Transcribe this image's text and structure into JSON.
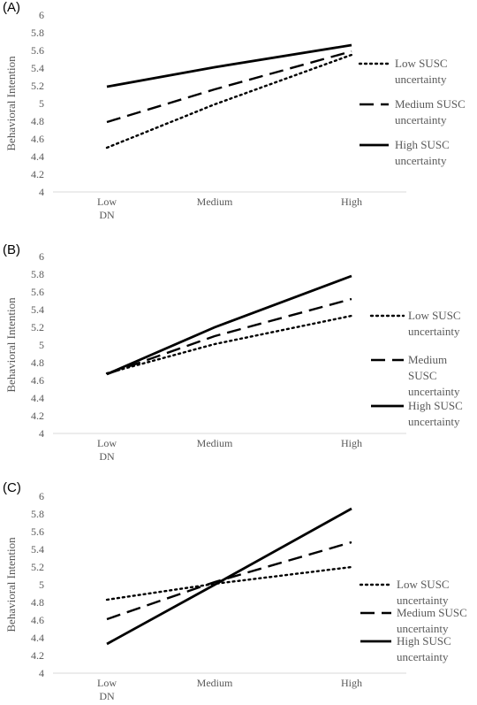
{
  "chart_data": [
    {
      "type": "line",
      "panel_label": "(A)",
      "ylabel": "Behavioral Intention",
      "ylim": [
        4,
        6
      ],
      "yticks": [
        "4",
        "4.2",
        "4.4",
        "4.6",
        "4.8",
        "5",
        "5.2",
        "5.4",
        "5.6",
        "5.8",
        "6"
      ],
      "categories": [
        "Low\nDN",
        "Medium",
        "High"
      ],
      "legend_position": "right",
      "series": [
        {
          "name": "Low SUSC\nuncertainty",
          "style": "dotted",
          "values": [
            4.5,
            4.99,
            5.55
          ]
        },
        {
          "name": "Medium SUSC\nuncertainty",
          "style": "dashed",
          "values": [
            4.79,
            5.16,
            5.59
          ]
        },
        {
          "name": "High SUSC\nuncertainty",
          "style": "solid",
          "values": [
            5.19,
            5.41,
            5.66
          ]
        }
      ]
    },
    {
      "type": "line",
      "panel_label": "(B)",
      "ylabel": "Behavioral Intention",
      "ylim": [
        4,
        6
      ],
      "yticks": [
        "4",
        "4.2",
        "4.4",
        "4.6",
        "4.8",
        "5",
        "5.2",
        "5.4",
        "5.6",
        "5.8",
        "6"
      ],
      "categories": [
        "Low\nDN",
        "Medium",
        "High"
      ],
      "legend_position": "right",
      "series": [
        {
          "name": "Low SUSC\nuncertainty",
          "style": "dotted",
          "values": [
            4.68,
            5.01,
            5.33
          ]
        },
        {
          "name": "Medium\nSUSC\nuncertainty",
          "style": "dashed",
          "values": [
            4.67,
            5.1,
            5.52
          ]
        },
        {
          "name": "High SUSC\nuncertainty",
          "style": "solid",
          "values": [
            4.67,
            5.2,
            5.78
          ]
        }
      ]
    },
    {
      "type": "line",
      "panel_label": "(C)",
      "ylabel": "Behavioral Intention",
      "ylim": [
        4,
        6
      ],
      "yticks": [
        "4",
        "4.2",
        "4.4",
        "4.6",
        "4.8",
        "5",
        "5.2",
        "5.4",
        "5.6",
        "5.8",
        "6"
      ],
      "categories": [
        "Low\nDN",
        "Medium",
        "High"
      ],
      "legend_position": "right",
      "series": [
        {
          "name": "Low SUSC\nuncertainty",
          "style": "dotted",
          "values": [
            4.83,
            5.01,
            5.2
          ]
        },
        {
          "name": "Medium SUSC\nuncertainty",
          "style": "dashed",
          "values": [
            4.61,
            5.03,
            5.48
          ]
        },
        {
          "name": "High SUSC\nuncertainty",
          "style": "solid",
          "values": [
            4.33,
            5.0,
            5.86
          ]
        }
      ]
    }
  ],
  "colors": {
    "line": "#000000",
    "axis_text": "#595959",
    "axis_line": "#d9d9d9"
  }
}
